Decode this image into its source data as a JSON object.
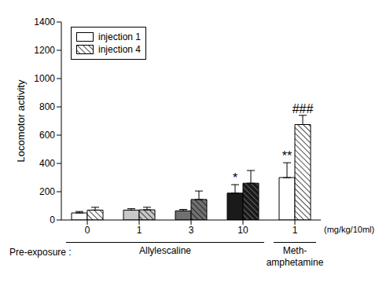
{
  "chart_data": {
    "type": "bar",
    "categories": [
      0,
      1,
      3,
      10,
      1
    ],
    "ylabel": "Locomotor activity",
    "xlabel": "(mg/kg/10ml)",
    "row_label": "Pre-exposure :",
    "groups": [
      {
        "label": [
          "Allylescaline"
        ],
        "from": 0,
        "to": 3
      },
      {
        "label": [
          "Meth-",
          "amphetamine"
        ],
        "from": 4,
        "to": 4
      }
    ],
    "ylim": [
      0,
      1400
    ],
    "yticks": [
      0,
      200,
      400,
      600,
      800,
      1000,
      1200,
      1400
    ],
    "grid": false,
    "legend": "upper left",
    "series": [
      {
        "name": "injection 1",
        "colors": [
          "#ffffff",
          "#c8c8c8",
          "#707070",
          "#1a1a1a",
          "#ffffff"
        ],
        "values": [
          50,
          70,
          65,
          190,
          300
        ],
        "errors": [
          10,
          10,
          10,
          60,
          105
        ],
        "significance": [
          null,
          null,
          null,
          "*",
          "**"
        ]
      },
      {
        "name": "injection 4",
        "colors": [
          "#ffffff",
          "#c8c8c8",
          "#707070",
          "#1a1a1a",
          "#ffffff"
        ],
        "values": [
          70,
          72,
          145,
          260,
          675
        ],
        "errors": [
          20,
          18,
          60,
          90,
          65
        ],
        "significance": [
          null,
          null,
          null,
          null,
          "###"
        ]
      }
    ]
  }
}
